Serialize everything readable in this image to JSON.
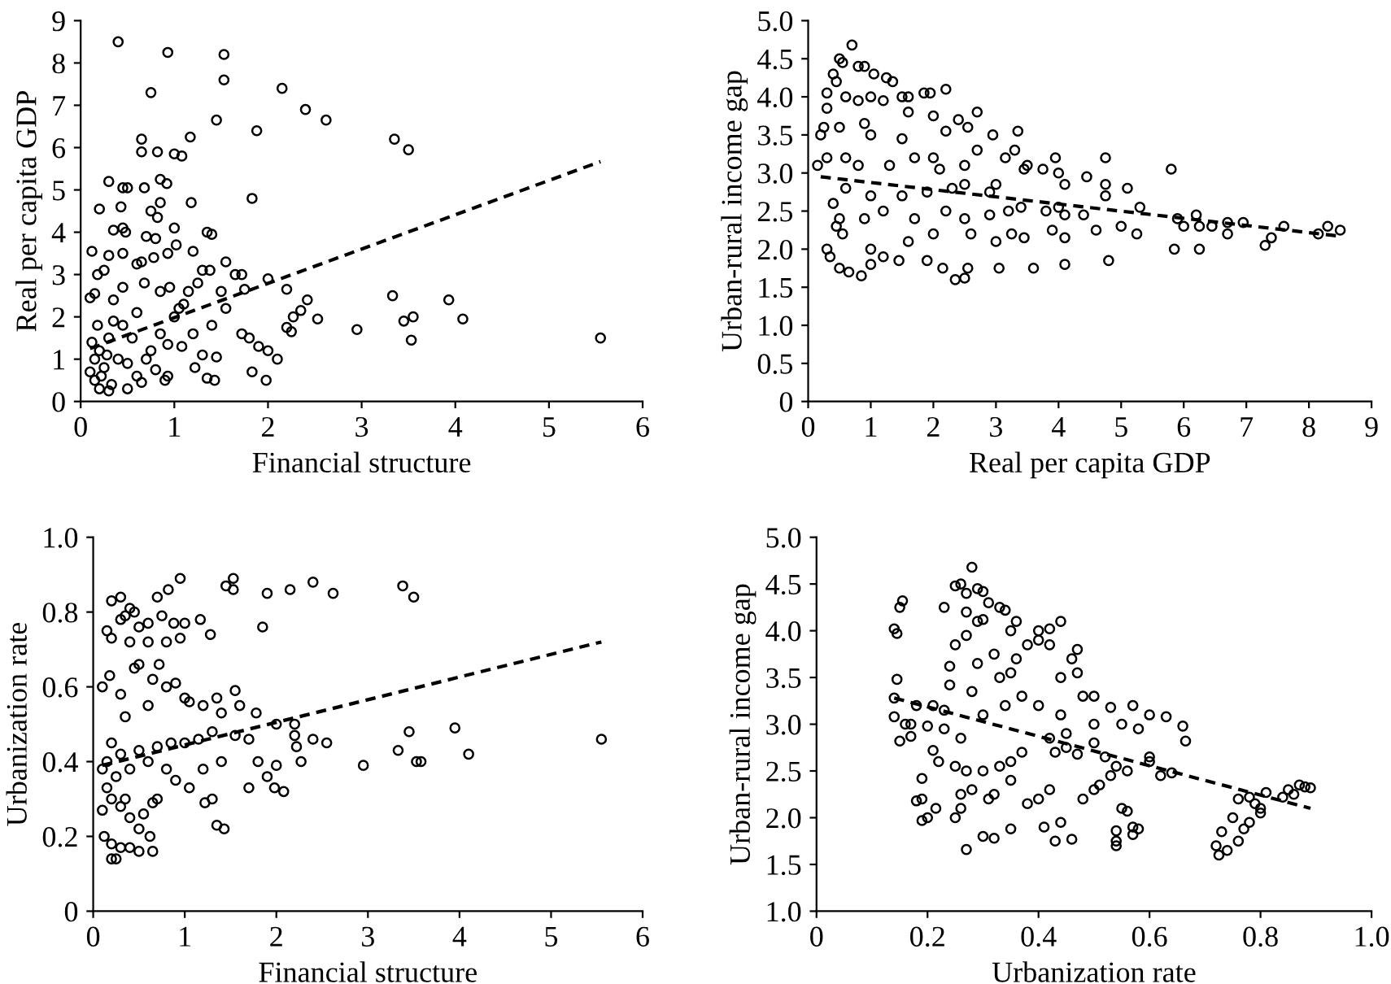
{
  "chart_data": [
    {
      "type": "scatter",
      "xlabel": "Financial structure",
      "ylabel": "Real per capita GDP",
      "xlim": [
        0,
        6
      ],
      "ylim": [
        0,
        9
      ],
      "xticks": [
        0,
        1,
        2,
        3,
        4,
        5,
        6
      ],
      "yticks": [
        0,
        1,
        2,
        3,
        4,
        5,
        6,
        7,
        8,
        9
      ],
      "series": [
        {
          "color": "#000000",
          "marker": "circle",
          "x": [
            0.4,
            0.93,
            1.53,
            1.53,
            0.75,
            2.15,
            2.4,
            2.62,
            1.45,
            1.88,
            3.35,
            3.5,
            0.65,
            0.65,
            0.82,
            1.0,
            1.08,
            1.17,
            0.3,
            0.45,
            0.5,
            0.68,
            0.85,
            0.92,
            0.2,
            0.43,
            1.83,
            1.18,
            0.75,
            0.82,
            0.85,
            0.35,
            0.45,
            0.48,
            1.0,
            1.35,
            1.4,
            0.7,
            0.8,
            1.02,
            0.12,
            0.3,
            0.45,
            0.6,
            0.65,
            0.78,
            0.93,
            1.2,
            1.55,
            1.65,
            1.72,
            2.0,
            1.3,
            1.38,
            0.25,
            0.18,
            0.1,
            0.15,
            0.35,
            0.45,
            0.68,
            0.85,
            0.95,
            1.05,
            1.15,
            1.25,
            1.5,
            1.75,
            2.2,
            2.42,
            2.35,
            2.27,
            2.53,
            2.2,
            2.25,
            2.95,
            3.33,
            3.45,
            3.55,
            3.53,
            3.93,
            4.08,
            5.55,
            1.72,
            1.8,
            1.9,
            2.0,
            2.1,
            1.83,
            1.98,
            1.35,
            1.43,
            1.22,
            1.45,
            1.3,
            1.08,
            0.93,
            0.9,
            0.93,
            0.8,
            0.7,
            0.6,
            0.5,
            0.3,
            0.2,
            0.15,
            0.1,
            0.15,
            0.2,
            0.25,
            0.3,
            0.4,
            0.45,
            0.55,
            0.6,
            0.35,
            0.18,
            0.12,
            0.22,
            0.28,
            0.33,
            0.5,
            0.65,
            0.75,
            0.85,
            1.0,
            1.1,
            1.2,
            1.4,
            1.55
          ],
          "values": [
            8.5,
            8.25,
            8.2,
            7.6,
            7.3,
            7.4,
            6.9,
            6.65,
            6.65,
            6.4,
            6.2,
            5.95,
            6.2,
            5.9,
            5.9,
            5.85,
            5.8,
            6.25,
            5.2,
            5.05,
            5.05,
            5.05,
            5.25,
            5.15,
            4.55,
            4.6,
            4.8,
            4.7,
            4.5,
            4.35,
            4.7,
            4.05,
            4.1,
            4.0,
            4.1,
            4.0,
            3.95,
            3.9,
            3.85,
            3.7,
            3.55,
            3.45,
            3.5,
            3.25,
            3.3,
            3.4,
            3.5,
            3.55,
            3.3,
            3.0,
            3.0,
            2.9,
            3.1,
            3.1,
            3.1,
            3.0,
            2.45,
            2.55,
            2.4,
            2.7,
            2.8,
            2.6,
            2.7,
            2.2,
            2.6,
            2.8,
            2.6,
            2.65,
            2.65,
            2.4,
            2.15,
            2.0,
            1.95,
            1.75,
            1.65,
            1.7,
            2.5,
            1.9,
            2.0,
            1.45,
            2.4,
            1.95,
            1.5,
            1.6,
            1.5,
            1.3,
            1.2,
            1.0,
            0.7,
            0.5,
            0.55,
            0.5,
            0.8,
            1.05,
            1.1,
            1.3,
            1.35,
            0.5,
            0.6,
            0.75,
            1.0,
            0.6,
            0.3,
            0.25,
            0.3,
            0.5,
            0.7,
            1.0,
            1.2,
            0.8,
            1.5,
            1.0,
            1.8,
            1.5,
            2.1,
            1.9,
            1.8,
            1.4,
            0.6,
            1.1,
            0.4,
            0.9,
            0.45,
            1.2,
            1.6,
            2.0,
            2.3,
            1.6,
            1.8,
            2.2
          ]
        },
        {
          "type": "line",
          "color": "#000000",
          "marker": "none",
          "line_style": "dashed",
          "x": [
            0.1,
            5.55
          ],
          "values": [
            1.25,
            5.67
          ]
        }
      ]
    },
    {
      "type": "scatter",
      "xlabel": "Real per capita GDP",
      "ylabel": "Urban-rural income gap",
      "xlim": [
        0,
        9
      ],
      "ylim": [
        0,
        5.0
      ],
      "xticks": [
        0,
        1,
        2,
        3,
        4,
        5,
        6,
        7,
        8,
        9
      ],
      "yticks": [
        0,
        {
          "value": 0.5,
          "label": "0.5"
        },
        {
          "value": 1,
          "label": "1.0"
        },
        {
          "value": 1.5,
          "label": "1.5"
        },
        {
          "value": 2,
          "label": "2.0"
        },
        {
          "value": 2.5,
          "label": "2.5"
        },
        {
          "value": 3,
          "label": "3.0"
        },
        {
          "value": 3.5,
          "label": "3.5"
        },
        {
          "value": 4,
          "label": "4.0"
        },
        {
          "value": 4.5,
          "label": "4.5"
        },
        {
          "value": 5,
          "label": "5.0"
        }
      ],
      "series": [
        {
          "color": "#000000",
          "marker": "circle",
          "x": [
            0.7,
            0.5,
            0.55,
            0.8,
            0.9,
            0.4,
            1.05,
            1.25,
            1.35,
            0.45,
            2.2,
            1.85,
            1.95,
            0.3,
            0.6,
            1.0,
            1.5,
            1.6,
            0.8,
            1.2,
            1.6,
            2.0,
            2.7,
            2.4,
            0.3,
            0.5,
            0.9,
            1.0,
            0.25,
            2.55,
            2.2,
            2.95,
            3.35,
            1.5,
            0.2,
            0.15,
            0.3,
            0.6,
            0.8,
            1.3,
            1.7,
            2.0,
            2.1,
            2.5,
            2.7,
            3.3,
            3.15,
            3.45,
            3.5,
            3.95,
            3.75,
            4.0,
            4.1,
            4.45,
            4.75,
            4.75,
            5.8,
            5.1,
            4.75,
            3.0,
            2.9,
            2.5,
            2.3,
            1.9,
            1.5,
            1.0,
            0.6,
            0.4,
            0.5,
            0.55,
            0.45,
            0.9,
            1.2,
            1.7,
            2.2,
            2.5,
            2.9,
            3.2,
            3.4,
            3.8,
            4.0,
            4.4,
            4.1,
            4.6,
            5.0,
            5.3,
            5.25,
            5.9,
            6.0,
            6.2,
            6.25,
            6.45,
            6.7,
            6.95,
            6.7,
            7.6,
            7.4,
            7.3,
            8.15,
            8.3,
            8.5,
            5.85,
            6.25,
            4.8,
            4.1,
            3.6,
            3.05,
            2.55,
            2.5,
            2.35,
            2.15,
            1.9,
            1.45,
            1.2,
            0.85,
            0.65,
            0.5,
            1.0,
            0.3,
            0.35,
            1.0,
            1.6,
            2.0,
            2.6,
            3.0,
            3.25,
            3.45,
            3.9,
            4.1
          ],
          "values": [
            4.68,
            4.5,
            4.45,
            4.4,
            4.4,
            4.3,
            4.3,
            4.25,
            4.2,
            4.2,
            4.1,
            4.05,
            4.05,
            4.05,
            4.0,
            4.0,
            4.0,
            4.0,
            3.95,
            3.95,
            3.8,
            3.75,
            3.8,
            3.7,
            3.85,
            3.6,
            3.65,
            3.5,
            3.6,
            3.6,
            3.55,
            3.5,
            3.55,
            3.45,
            3.5,
            3.1,
            3.2,
            3.2,
            3.1,
            3.1,
            3.2,
            3.2,
            3.05,
            3.1,
            3.3,
            3.3,
            3.2,
            3.05,
            3.1,
            3.2,
            3.05,
            3.0,
            2.85,
            2.95,
            3.2,
            2.85,
            3.05,
            2.8,
            2.7,
            2.85,
            2.75,
            2.85,
            2.8,
            2.75,
            2.7,
            2.7,
            2.8,
            2.6,
            2.4,
            2.2,
            2.3,
            2.4,
            2.5,
            2.4,
            2.5,
            2.4,
            2.45,
            2.5,
            2.55,
            2.5,
            2.55,
            2.45,
            2.45,
            2.25,
            2.3,
            2.55,
            2.2,
            2.4,
            2.3,
            2.45,
            2.3,
            2.3,
            2.35,
            2.35,
            2.2,
            2.3,
            2.15,
            2.05,
            2.2,
            2.3,
            2.25,
            2.0,
            2.0,
            1.85,
            1.8,
            1.75,
            1.75,
            1.75,
            1.62,
            1.6,
            1.75,
            1.85,
            1.85,
            1.9,
            1.65,
            1.7,
            1.75,
            1.8,
            2.0,
            1.9,
            2.0,
            2.1,
            2.2,
            2.2,
            2.1,
            2.2,
            2.15,
            2.25,
            2.15
          ]
        },
        {
          "type": "line",
          "color": "#000000",
          "marker": "none",
          "line_style": "dashed",
          "x": [
            0.2,
            8.5
          ],
          "values": [
            2.95,
            2.17
          ]
        }
      ]
    },
    {
      "type": "scatter",
      "xlabel": "Financial structure",
      "ylabel": "Urbanization rate",
      "xlim": [
        0,
        6
      ],
      "ylim": [
        0,
        1.0
      ],
      "xticks": [
        0,
        1,
        2,
        3,
        4,
        5,
        6
      ],
      "yticks": [
        0,
        {
          "value": 0.2,
          "label": "0.2"
        },
        {
          "value": 0.4,
          "label": "0.4"
        },
        {
          "value": 0.6,
          "label": "0.6"
        },
        {
          "value": 0.8,
          "label": "0.8"
        },
        {
          "value": 1,
          "label": "1.0"
        }
      ],
      "series": [
        {
          "color": "#000000",
          "marker": "circle",
          "x": [
            0.95,
            1.53,
            1.53,
            1.45,
            2.4,
            2.15,
            1.9,
            2.62,
            3.38,
            3.5,
            0.82,
            0.3,
            0.2,
            0.7,
            0.4,
            0.45,
            0.3,
            0.15,
            0.2,
            0.35,
            0.5,
            0.6,
            0.75,
            0.88,
            1.0,
            1.17,
            1.28,
            0.95,
            0.8,
            0.6,
            0.4,
            1.85,
            0.1,
            0.18,
            0.3,
            0.45,
            0.5,
            0.65,
            0.72,
            0.8,
            0.9,
            1.0,
            1.05,
            1.35,
            1.55,
            1.2,
            1.4,
            1.6,
            1.78,
            0.6,
            0.35,
            2.0,
            2.2,
            2.2,
            2.22,
            2.4,
            2.55,
            1.7,
            1.55,
            1.3,
            1.15,
            1.0,
            0.85,
            0.7,
            0.5,
            0.3,
            0.2,
            0.15,
            0.1,
            0.25,
            0.4,
            0.6,
            0.8,
            0.9,
            1.05,
            1.2,
            1.3,
            1.22,
            1.4,
            1.7,
            1.8,
            1.9,
            2.0,
            1.98,
            2.08,
            2.27,
            2.95,
            3.33,
            3.45,
            3.53,
            3.58,
            3.95,
            4.1,
            5.55,
            1.35,
            1.43,
            0.1,
            0.12,
            0.2,
            0.25,
            0.2,
            0.3,
            0.4,
            0.5,
            0.65,
            0.62,
            0.5,
            0.4,
            0.3,
            0.2,
            0.15,
            0.35,
            0.55,
            0.65,
            0.7
          ],
          "values": [
            0.89,
            0.89,
            0.86,
            0.87,
            0.88,
            0.86,
            0.85,
            0.85,
            0.87,
            0.84,
            0.86,
            0.84,
            0.83,
            0.84,
            0.81,
            0.8,
            0.78,
            0.75,
            0.73,
            0.79,
            0.76,
            0.77,
            0.79,
            0.77,
            0.77,
            0.78,
            0.74,
            0.73,
            0.72,
            0.72,
            0.72,
            0.76,
            0.6,
            0.63,
            0.58,
            0.65,
            0.66,
            0.62,
            0.66,
            0.6,
            0.61,
            0.57,
            0.56,
            0.57,
            0.59,
            0.55,
            0.53,
            0.55,
            0.53,
            0.55,
            0.52,
            0.5,
            0.5,
            0.47,
            0.44,
            0.46,
            0.45,
            0.46,
            0.47,
            0.48,
            0.46,
            0.45,
            0.45,
            0.44,
            0.43,
            0.42,
            0.45,
            0.4,
            0.38,
            0.36,
            0.38,
            0.4,
            0.38,
            0.35,
            0.33,
            0.38,
            0.3,
            0.29,
            0.4,
            0.33,
            0.4,
            0.36,
            0.39,
            0.33,
            0.32,
            0.4,
            0.39,
            0.43,
            0.48,
            0.4,
            0.4,
            0.49,
            0.42,
            0.46,
            0.23,
            0.22,
            0.27,
            0.2,
            0.18,
            0.14,
            0.14,
            0.17,
            0.17,
            0.16,
            0.16,
            0.2,
            0.22,
            0.25,
            0.28,
            0.3,
            0.33,
            0.3,
            0.26,
            0.29,
            0.3
          ]
        },
        {
          "type": "line",
          "color": "#000000",
          "marker": "none",
          "line_style": "dashed",
          "x": [
            0.1,
            5.55
          ],
          "values": [
            0.39,
            0.72
          ]
        }
      ]
    },
    {
      "type": "scatter",
      "xlabel": "Urbanization rate",
      "ylabel": "Urban-rural income gap",
      "xlim": [
        0,
        1.0
      ],
      "ylim": [
        1.0,
        5.0
      ],
      "xticks": [
        0,
        {
          "value": 0.2,
          "label": "0.2"
        },
        {
          "value": 0.4,
          "label": "0.4"
        },
        {
          "value": 0.6,
          "label": "0.6"
        },
        {
          "value": 0.8,
          "label": "0.8"
        },
        {
          "value": 1,
          "label": "1.0"
        }
      ],
      "yticks": [
        {
          "value": 1,
          "label": "1.0"
        },
        {
          "value": 1.5,
          "label": "1.5"
        },
        {
          "value": 2,
          "label": "2.0"
        },
        {
          "value": 2.5,
          "label": "2.5"
        },
        {
          "value": 3,
          "label": "3.0"
        },
        {
          "value": 3.5,
          "label": "3.5"
        },
        {
          "value": 4,
          "label": "4.0"
        },
        {
          "value": 4.5,
          "label": "4.5"
        },
        {
          "value": 5,
          "label": "5.0"
        }
      ],
      "series": [
        {
          "color": "#000000",
          "marker": "circle",
          "x": [
            0.28,
            0.25,
            0.26,
            0.29,
            0.3,
            0.27,
            0.23,
            0.31,
            0.33,
            0.34,
            0.155,
            0.15,
            0.14,
            0.145,
            0.27,
            0.29,
            0.3,
            0.36,
            0.4,
            0.42,
            0.44,
            0.35,
            0.38,
            0.4,
            0.42,
            0.47,
            0.46,
            0.25,
            0.27,
            0.32,
            0.36,
            0.24,
            0.24,
            0.29,
            0.28,
            0.33,
            0.35,
            0.44,
            0.47,
            0.145,
            0.14,
            0.14,
            0.16,
            0.17,
            0.18,
            0.21,
            0.23,
            0.2,
            0.23,
            0.15,
            0.17,
            0.26,
            0.3,
            0.34,
            0.37,
            0.4,
            0.44,
            0.48,
            0.5,
            0.53,
            0.57,
            0.6,
            0.63,
            0.66,
            0.665,
            0.55,
            0.58,
            0.5,
            0.45,
            0.42,
            0.45,
            0.47,
            0.43,
            0.5,
            0.52,
            0.54,
            0.56,
            0.6,
            0.62,
            0.53,
            0.51,
            0.48,
            0.5,
            0.37,
            0.35,
            0.33,
            0.3,
            0.27,
            0.25,
            0.22,
            0.21,
            0.19,
            0.19,
            0.18,
            0.2,
            0.19,
            0.215,
            0.25,
            0.26,
            0.26,
            0.28,
            0.31,
            0.32,
            0.35,
            0.38,
            0.4,
            0.42,
            0.41,
            0.43,
            0.44,
            0.46,
            0.3,
            0.32,
            0.27,
            0.35,
            0.54,
            0.54,
            0.54,
            0.55,
            0.57,
            0.58,
            0.57,
            0.56,
            0.6,
            0.64,
            0.72,
            0.725,
            0.73,
            0.74,
            0.76,
            0.77,
            0.78,
            0.75,
            0.76,
            0.78,
            0.79,
            0.8,
            0.8,
            0.81,
            0.84,
            0.85,
            0.86,
            0.87,
            0.88,
            0.89
          ],
          "values": [
            4.68,
            4.48,
            4.5,
            4.45,
            4.42,
            4.4,
            4.25,
            4.3,
            4.25,
            4.22,
            4.32,
            4.25,
            4.02,
            3.97,
            4.2,
            4.1,
            4.12,
            4.1,
            4.0,
            4.02,
            4.1,
            4.0,
            3.85,
            3.9,
            3.85,
            3.8,
            3.7,
            3.85,
            3.95,
            3.75,
            3.7,
            3.62,
            3.42,
            3.65,
            3.35,
            3.5,
            3.55,
            3.5,
            3.55,
            3.48,
            3.28,
            3.08,
            3.0,
            3.0,
            3.2,
            3.2,
            3.15,
            2.98,
            2.95,
            2.82,
            2.87,
            2.85,
            3.1,
            3.2,
            3.3,
            3.2,
            3.1,
            3.3,
            3.3,
            3.18,
            3.2,
            3.1,
            3.08,
            2.98,
            2.82,
            3.0,
            2.95,
            3.0,
            2.9,
            2.85,
            2.75,
            2.68,
            2.7,
            2.8,
            2.65,
            2.55,
            2.5,
            2.6,
            2.45,
            2.45,
            2.35,
            2.2,
            2.3,
            2.7,
            2.6,
            2.55,
            2.5,
            2.5,
            2.55,
            2.6,
            2.72,
            2.42,
            2.2,
            2.18,
            2.0,
            1.97,
            2.1,
            2.0,
            2.1,
            2.25,
            2.3,
            2.2,
            2.25,
            2.4,
            2.15,
            2.2,
            2.3,
            1.9,
            1.75,
            1.95,
            1.77,
            1.8,
            1.78,
            1.66,
            1.88,
            1.75,
            1.7,
            1.86,
            2.1,
            1.9,
            1.88,
            1.82,
            2.07,
            2.65,
            2.48,
            1.7,
            1.6,
            1.85,
            1.65,
            1.75,
            1.88,
            1.95,
            2.0,
            2.2,
            2.22,
            2.15,
            2.1,
            2.05,
            2.27,
            2.22,
            2.3,
            2.25,
            2.35,
            2.33,
            2.32
          ]
        },
        {
          "type": "line",
          "color": "#000000",
          "marker": "none",
          "line_style": "dashed",
          "x": [
            0.14,
            0.89
          ],
          "values": [
            3.28,
            2.1
          ]
        }
      ]
    }
  ]
}
